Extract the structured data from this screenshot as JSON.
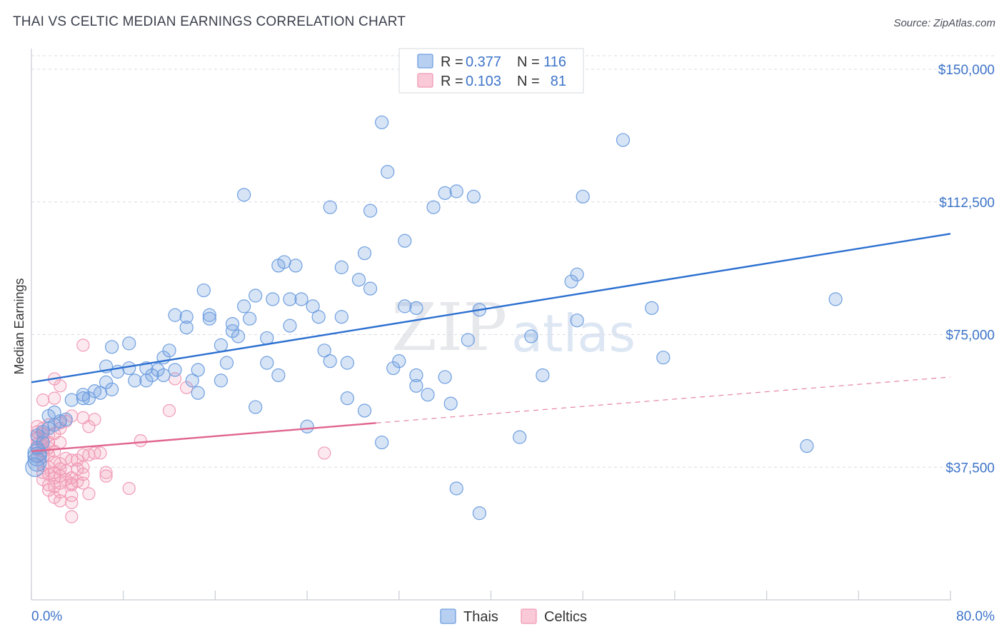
{
  "title": "THAI VS CELTIC MEDIAN EARNINGS CORRELATION CHART",
  "source": "Source: ZipAtlas.com",
  "watermark": {
    "zip": "ZIP",
    "atlas": "atlas"
  },
  "colors": {
    "thais": "#6f9fe0",
    "thais_line": "#2b6fd0",
    "celtics": "#f19ab6",
    "celtics_line": "#e0648e",
    "grid": "#d9dce3",
    "axis_text": "#3d74c9"
  },
  "legend": {
    "r_label": "R =",
    "n_label": "N =",
    "thais": {
      "r": "0.377",
      "n": "116"
    },
    "celtics": {
      "r": "0.103",
      "n": "81"
    }
  },
  "bottom_legend": {
    "thais": "Thais",
    "celtics": "Celtics"
  },
  "chart_data": {
    "type": "scatter",
    "title": "THAI VS CELTIC MEDIAN EARNINGS CORRELATION CHART",
    "xlabel": "",
    "ylabel": "Median Earnings",
    "xlim": [
      0,
      80
    ],
    "ylim": [
      0,
      158000
    ],
    "x_tick_labels": {
      "min": "0.0%",
      "max": "80.0%"
    },
    "y_ticks": [
      {
        "value": 37500,
        "label": "$37,500"
      },
      {
        "value": 75000,
        "label": "$75,000"
      },
      {
        "value": 112500,
        "label": "$112,500"
      },
      {
        "value": 150000,
        "label": "$150,000"
      }
    ],
    "grid": true,
    "legend_position": "top-center",
    "series": [
      {
        "name": "Thais",
        "r": 0.377,
        "n": 116,
        "trend": {
          "x0": 0,
          "y0": 61500,
          "x1": 80,
          "y1": 103500,
          "style": "solid"
        },
        "points": [
          [
            30.5,
            135000
          ],
          [
            51.5,
            130000
          ],
          [
            31,
            121000
          ],
          [
            18.5,
            114500
          ],
          [
            37,
            115500
          ],
          [
            36,
            115000
          ],
          [
            38.5,
            114000
          ],
          [
            48,
            114000
          ],
          [
            26,
            111000
          ],
          [
            29.5,
            110000
          ],
          [
            35,
            111000
          ],
          [
            32.5,
            101500
          ],
          [
            29,
            98000
          ],
          [
            22,
            95500
          ],
          [
            21.5,
            94500
          ],
          [
            23,
            94500
          ],
          [
            27,
            94000
          ],
          [
            28.5,
            90500
          ],
          [
            47.5,
            92000
          ],
          [
            47,
            90000
          ],
          [
            15,
            87500
          ],
          [
            29.5,
            88000
          ],
          [
            19.5,
            86000
          ],
          [
            21,
            85000
          ],
          [
            22.5,
            85000
          ],
          [
            23.5,
            85000
          ],
          [
            70,
            85000
          ],
          [
            18.5,
            83000
          ],
          [
            24.5,
            83000
          ],
          [
            32.5,
            83000
          ],
          [
            33.5,
            82500
          ],
          [
            39,
            82000
          ],
          [
            54,
            82500
          ],
          [
            12.5,
            80500
          ],
          [
            13.5,
            80000
          ],
          [
            15.5,
            80500
          ],
          [
            15.5,
            79500
          ],
          [
            19,
            79500
          ],
          [
            25,
            80000
          ],
          [
            27,
            80000
          ],
          [
            47.5,
            79000
          ],
          [
            13.5,
            77000
          ],
          [
            17.5,
            78000
          ],
          [
            22.5,
            77500
          ],
          [
            17.5,
            76000
          ],
          [
            18,
            74500
          ],
          [
            20.5,
            74000
          ],
          [
            38,
            73500
          ],
          [
            43.5,
            74500
          ],
          [
            8.5,
            72500
          ],
          [
            7,
            71500
          ],
          [
            16.5,
            72000
          ],
          [
            12,
            70500
          ],
          [
            25.5,
            70500
          ],
          [
            55,
            68500
          ],
          [
            11.5,
            68500
          ],
          [
            26,
            67500
          ],
          [
            27.5,
            67000
          ],
          [
            32,
            67500
          ],
          [
            6.5,
            66000
          ],
          [
            8.5,
            65500
          ],
          [
            17,
            67000
          ],
          [
            20.5,
            67000
          ],
          [
            7.5,
            64500
          ],
          [
            10,
            65500
          ],
          [
            11,
            65000
          ],
          [
            12.5,
            65000
          ],
          [
            14.5,
            65000
          ],
          [
            31.5,
            65500
          ],
          [
            21.5,
            63500
          ],
          [
            10.5,
            63500
          ],
          [
            11.5,
            63500
          ],
          [
            33.5,
            63500
          ],
          [
            36,
            63000
          ],
          [
            44.5,
            63500
          ],
          [
            9,
            62000
          ],
          [
            10,
            62000
          ],
          [
            14,
            62000
          ],
          [
            16.5,
            62000
          ],
          [
            6.5,
            61500
          ],
          [
            7,
            59500
          ],
          [
            5.5,
            59000
          ],
          [
            6,
            58500
          ],
          [
            4.5,
            58000
          ],
          [
            33.5,
            60500
          ],
          [
            14.5,
            58500
          ],
          [
            5,
            57000
          ],
          [
            27.5,
            57000
          ],
          [
            34.5,
            58000
          ],
          [
            3.5,
            56500
          ],
          [
            4.5,
            57000
          ],
          [
            36.5,
            55500
          ],
          [
            19.5,
            54500
          ],
          [
            29,
            53500
          ],
          [
            2,
            53000
          ],
          [
            1.5,
            52000
          ],
          [
            3,
            51000
          ],
          [
            2.5,
            50500
          ],
          [
            2,
            49500
          ],
          [
            1.5,
            48500
          ],
          [
            24,
            49000
          ],
          [
            1,
            47500
          ],
          [
            0.5,
            46500
          ],
          [
            42.5,
            46000
          ],
          [
            1,
            44500
          ],
          [
            30.5,
            44500
          ],
          [
            67.5,
            43500
          ],
          [
            0.5,
            43000
          ],
          [
            0.5,
            41500
          ],
          [
            0.5,
            40500
          ],
          [
            0.5,
            39000
          ],
          [
            37,
            31500
          ],
          [
            39,
            24500
          ],
          [
            0.3,
            37500
          ]
        ]
      },
      {
        "name": "Celtics",
        "r": 0.103,
        "n": 81,
        "trend": {
          "x0": 0,
          "y0": 42000,
          "x1": 30,
          "y1": 50000,
          "style": "solid",
          "dash_to": {
            "x": 80,
            "y": 63000
          }
        },
        "points": [
          [
            4.5,
            72000
          ],
          [
            2,
            62500
          ],
          [
            2.5,
            60500
          ],
          [
            13.5,
            60000
          ],
          [
            12.5,
            62500
          ],
          [
            1,
            56500
          ],
          [
            2,
            57000
          ],
          [
            12,
            53500
          ],
          [
            3.5,
            52000
          ],
          [
            4.5,
            51500
          ],
          [
            5.5,
            51000
          ],
          [
            2.5,
            50000
          ],
          [
            3,
            50500
          ],
          [
            1.5,
            49500
          ],
          [
            0.5,
            49000
          ],
          [
            1,
            48500
          ],
          [
            5,
            49000
          ],
          [
            0.5,
            47500
          ],
          [
            1,
            47000
          ],
          [
            1.5,
            46500
          ],
          [
            2,
            47000
          ],
          [
            0.5,
            45500
          ],
          [
            1,
            45000
          ],
          [
            1.5,
            44500
          ],
          [
            2.5,
            44500
          ],
          [
            9.5,
            45000
          ],
          [
            0.5,
            44000
          ],
          [
            1,
            43500
          ],
          [
            1.5,
            43000
          ],
          [
            0.5,
            42500
          ],
          [
            1,
            42000
          ],
          [
            2,
            42000
          ],
          [
            1.5,
            41000
          ],
          [
            25.5,
            41500
          ],
          [
            4.5,
            41000
          ],
          [
            5.5,
            41500
          ],
          [
            0.5,
            40500
          ],
          [
            1,
            40500
          ],
          [
            3,
            40000
          ],
          [
            3.5,
            39500
          ],
          [
            2,
            39000
          ],
          [
            4,
            39500
          ],
          [
            2.5,
            38500
          ],
          [
            1,
            38000
          ],
          [
            1.5,
            37500
          ],
          [
            2.5,
            37000
          ],
          [
            3,
            36500
          ],
          [
            4,
            37000
          ],
          [
            1,
            36000
          ],
          [
            1.5,
            35500
          ],
          [
            2.5,
            35000
          ],
          [
            3.5,
            34500
          ],
          [
            4.5,
            35500
          ],
          [
            6.5,
            35000
          ],
          [
            2,
            34500
          ],
          [
            3,
            34000
          ],
          [
            4,
            33500
          ],
          [
            2.5,
            33000
          ],
          [
            3.5,
            33000
          ],
          [
            1.5,
            32500
          ],
          [
            2,
            32000
          ],
          [
            3.5,
            32500
          ],
          [
            4.5,
            33000
          ],
          [
            1.5,
            31000
          ],
          [
            2.5,
            30500
          ],
          [
            8.5,
            31500
          ],
          [
            5,
            30000
          ],
          [
            2,
            29000
          ],
          [
            3.5,
            29500
          ],
          [
            2.5,
            28000
          ],
          [
            3.5,
            27500
          ],
          [
            3.5,
            23500
          ],
          [
            6,
            41500
          ],
          [
            5,
            41000
          ],
          [
            1,
            34000
          ],
          [
            2,
            36000
          ],
          [
            4.5,
            37500
          ],
          [
            6.5,
            36000
          ],
          [
            0.5,
            46000
          ],
          [
            1,
            45500
          ],
          [
            2.5,
            48500
          ]
        ]
      }
    ]
  }
}
